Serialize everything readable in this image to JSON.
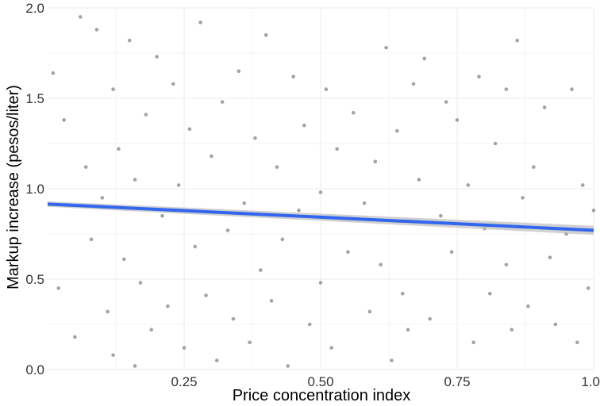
{
  "chart_data": {
    "type": "scatter",
    "title": "",
    "xlabel": "Price concentration index",
    "ylabel": "Markup increase (pesos/liter)",
    "xlim": [
      0,
      1.0
    ],
    "ylim": [
      0,
      2.0
    ],
    "x_ticks": [
      {
        "value": 0.25,
        "label": "0.25"
      },
      {
        "value": 0.5,
        "label": "0.50"
      },
      {
        "value": 0.75,
        "label": "0.75"
      },
      {
        "value": 1.0,
        "label": "1.0"
      }
    ],
    "y_ticks": [
      {
        "value": 0.0,
        "label": "0.0"
      },
      {
        "value": 0.5,
        "label": "0.5"
      },
      {
        "value": 1.0,
        "label": "1.0"
      },
      {
        "value": 1.5,
        "label": "1.5"
      },
      {
        "value": 2.0,
        "label": "2.0"
      }
    ],
    "grid": true,
    "legend": "none",
    "point_color": "#8c8c8c",
    "fit_line_color": "#3366ee",
    "fit_band_color": "#bdbdbd",
    "series": [
      {
        "type": "scatter",
        "points": [
          [
            0.01,
            1.64
          ],
          [
            0.02,
            0.45
          ],
          [
            0.03,
            1.38
          ],
          [
            0.05,
            0.18
          ],
          [
            0.06,
            1.95
          ],
          [
            0.07,
            1.12
          ],
          [
            0.08,
            0.72
          ],
          [
            0.09,
            1.88
          ],
          [
            0.1,
            0.95
          ],
          [
            0.11,
            0.32
          ],
          [
            0.12,
            1.55
          ],
          [
            0.12,
            0.08
          ],
          [
            0.13,
            1.22
          ],
          [
            0.14,
            0.61
          ],
          [
            0.15,
            1.82
          ],
          [
            0.16,
            0.02
          ],
          [
            0.16,
            1.05
          ],
          [
            0.17,
            0.48
          ],
          [
            0.18,
            1.41
          ],
          [
            0.19,
            0.22
          ],
          [
            0.2,
            1.73
          ],
          [
            0.21,
            0.85
          ],
          [
            0.22,
            0.35
          ],
          [
            0.23,
            1.58
          ],
          [
            0.24,
            1.02
          ],
          [
            0.25,
            0.12
          ],
          [
            0.26,
            1.33
          ],
          [
            0.27,
            0.68
          ],
          [
            0.28,
            1.92
          ],
          [
            0.29,
            0.41
          ],
          [
            0.3,
            1.18
          ],
          [
            0.31,
            0.05
          ],
          [
            0.32,
            1.48
          ],
          [
            0.33,
            0.77
          ],
          [
            0.34,
            0.28
          ],
          [
            0.35,
            1.65
          ],
          [
            0.36,
            0.92
          ],
          [
            0.37,
            0.15
          ],
          [
            0.38,
            1.28
          ],
          [
            0.39,
            0.55
          ],
          [
            0.4,
            1.85
          ],
          [
            0.41,
            0.38
          ],
          [
            0.42,
            1.12
          ],
          [
            0.43,
            0.72
          ],
          [
            0.44,
            0.02
          ],
          [
            0.45,
            1.62
          ],
          [
            0.46,
            0.88
          ],
          [
            0.47,
            1.35
          ],
          [
            0.48,
            0.25
          ],
          [
            0.5,
            0.98
          ],
          [
            0.5,
            0.48
          ],
          [
            0.51,
            1.55
          ],
          [
            0.52,
            0.12
          ],
          [
            0.53,
            1.22
          ],
          [
            0.55,
            0.65
          ],
          [
            0.56,
            1.42
          ],
          [
            0.58,
            0.92
          ],
          [
            0.59,
            0.32
          ],
          [
            0.6,
            1.15
          ],
          [
            0.61,
            0.58
          ],
          [
            0.62,
            1.78
          ],
          [
            0.63,
            0.05
          ],
          [
            0.64,
            1.32
          ],
          [
            0.65,
            0.42
          ],
          [
            0.66,
            0.22
          ],
          [
            0.67,
            1.58
          ],
          [
            0.68,
            1.05
          ],
          [
            0.69,
            1.72
          ],
          [
            0.7,
            0.28
          ],
          [
            0.72,
            0.85
          ],
          [
            0.73,
            1.48
          ],
          [
            0.74,
            0.65
          ],
          [
            0.75,
            1.38
          ],
          [
            0.77,
            1.02
          ],
          [
            0.78,
            0.15
          ],
          [
            0.79,
            1.62
          ],
          [
            0.8,
            0.78
          ],
          [
            0.81,
            0.42
          ],
          [
            0.82,
            1.25
          ],
          [
            0.84,
            1.55
          ],
          [
            0.84,
            0.58
          ],
          [
            0.85,
            0.22
          ],
          [
            0.86,
            1.82
          ],
          [
            0.87,
            0.95
          ],
          [
            0.88,
            0.35
          ],
          [
            0.89,
            1.12
          ],
          [
            0.91,
            1.45
          ],
          [
            0.92,
            0.62
          ],
          [
            0.93,
            0.25
          ],
          [
            0.95,
            0.75
          ],
          [
            0.96,
            1.55
          ],
          [
            0.97,
            0.15
          ],
          [
            0.98,
            1.02
          ],
          [
            0.99,
            0.45
          ],
          [
            1.0,
            0.88
          ]
        ]
      },
      {
        "type": "line",
        "points": [
          [
            0.0,
            0.915
          ],
          [
            1.0,
            0.77
          ]
        ]
      }
    ]
  }
}
